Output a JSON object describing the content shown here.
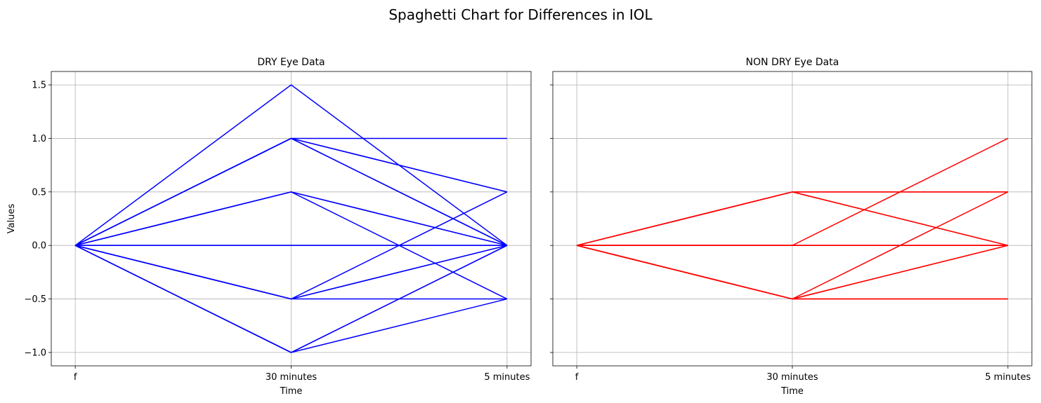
{
  "figure": {
    "title": "Spaghetti Chart for Differences in IOL"
  },
  "chart_data": [
    {
      "type": "line",
      "title": "DRY Eye Data",
      "xlabel": "Time",
      "ylabel": "Values",
      "categories": [
        "f",
        "30 minutes",
        "5 minutes"
      ],
      "yticks": [
        -1.0,
        -0.5,
        0.0,
        0.5,
        1.0,
        1.5
      ],
      "ytick_labels": [
        "−1.0",
        "−0.5",
        "0.0",
        "0.5",
        "1.0",
        "1.5"
      ],
      "ylim": [
        -1.125,
        1.625
      ],
      "grid": true,
      "color": "#0000ff",
      "series": [
        {
          "values": [
            0,
            1.5,
            0
          ]
        },
        {
          "values": [
            0,
            1.0,
            1.0
          ]
        },
        {
          "values": [
            0,
            1.0,
            0.5
          ]
        },
        {
          "values": [
            0,
            1.0,
            0.5
          ]
        },
        {
          "values": [
            0,
            1.0,
            0
          ]
        },
        {
          "values": [
            0,
            1.0,
            0
          ]
        },
        {
          "values": [
            0,
            0.5,
            0
          ]
        },
        {
          "values": [
            0,
            0.5,
            0
          ]
        },
        {
          "values": [
            0,
            0.5,
            -0.5
          ]
        },
        {
          "values": [
            0,
            0,
            0
          ]
        },
        {
          "values": [
            0,
            0,
            0
          ]
        },
        {
          "values": [
            0,
            -0.5,
            0.5
          ]
        },
        {
          "values": [
            0,
            -0.5,
            0
          ]
        },
        {
          "values": [
            0,
            -0.5,
            0
          ]
        },
        {
          "values": [
            0,
            -0.5,
            -0.5
          ]
        },
        {
          "values": [
            0,
            -1.0,
            0
          ]
        },
        {
          "values": [
            0,
            -1.0,
            0
          ]
        },
        {
          "values": [
            0,
            -1.0,
            -0.5
          ]
        }
      ]
    },
    {
      "type": "line",
      "title": "NON DRY Eye Data",
      "xlabel": "Time",
      "ylabel": "",
      "categories": [
        "f",
        "30 minutes",
        "5 minutes"
      ],
      "yticks": [
        -1.0,
        -0.5,
        0.0,
        0.5,
        1.0,
        1.5
      ],
      "ytick_labels": [],
      "ylim": [
        -1.125,
        1.625
      ],
      "grid": true,
      "color": "#ff0000",
      "series": [
        {
          "values": [
            0,
            0.5,
            0.5
          ]
        },
        {
          "values": [
            0,
            0.5,
            0.5
          ]
        },
        {
          "values": [
            0,
            0.5,
            0
          ]
        },
        {
          "values": [
            0,
            0.5,
            0
          ]
        },
        {
          "values": [
            0,
            0,
            1.0
          ]
        },
        {
          "values": [
            0,
            0,
            0
          ]
        },
        {
          "values": [
            0,
            0,
            0
          ]
        },
        {
          "values": [
            0,
            0,
            0
          ]
        },
        {
          "values": [
            0,
            -0.5,
            0.5
          ]
        },
        {
          "values": [
            0,
            -0.5,
            0
          ]
        },
        {
          "values": [
            0,
            -0.5,
            0
          ]
        },
        {
          "values": [
            0,
            -0.5,
            -0.5
          ]
        },
        {
          "values": [
            0,
            -0.5,
            -0.5
          ]
        }
      ]
    }
  ]
}
